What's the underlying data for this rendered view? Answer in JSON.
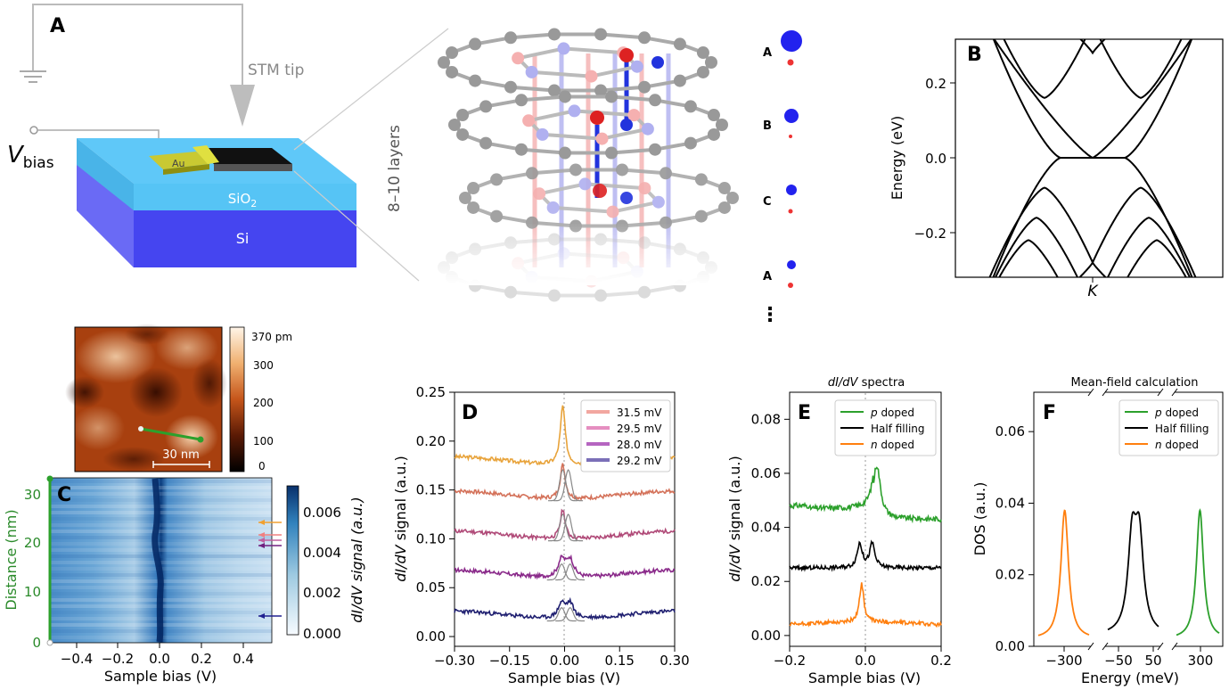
{
  "panel_a": {
    "label": "A",
    "stm_tip": "STM tip",
    "vbias_v": "V",
    "vbias_sub": "bias",
    "au": "Au",
    "sio2": "SiO",
    "sio2_sub": "2",
    "si": "Si",
    "layers": "8–10 layers",
    "stack_labels": [
      "A",
      "B",
      "C",
      "A"
    ],
    "ellipsis": "⋮"
  },
  "panel_b": {
    "label": "B",
    "ylabel": "Energy (eV)",
    "yticks": [
      "0.2",
      "0.0",
      "−0.2"
    ],
    "xtick": "K"
  },
  "panel_c": {
    "label": "C",
    "colorbar_topo": [
      "370 pm",
      "300",
      "200",
      "100",
      "0"
    ],
    "scalebar": "30 nm",
    "ylabel": "Distance (nm)",
    "yticks": [
      "30",
      "20",
      "10",
      "0"
    ],
    "xlabel": "Sample bias (V)",
    "xticks": [
      "−0.4",
      "−0.2",
      "0.0",
      "0.2",
      "0.4"
    ],
    "colorbar_label": "dI/dV signal (a.u.)",
    "colorbar_ticks": [
      "0.006",
      "0.004",
      "0.002",
      "0.000"
    ]
  },
  "panel_d": {
    "label": "D",
    "ylabel": "dI/dV signal (a.u.)",
    "xlabel": "Sample bias (V)",
    "yticks": [
      "0.25",
      "0.20",
      "0.15",
      "0.10",
      "0.05",
      "0.00"
    ],
    "xticks": [
      "−0.30",
      "−0.15",
      "0.00",
      "0.15",
      "0.30"
    ],
    "legend": [
      "31.5 mV",
      "29.5 mV",
      "28.0 mV",
      "29.2 mV"
    ],
    "colors": [
      "#f2a7a0",
      "#e58ec0",
      "#b565c0",
      "#7b6fb8"
    ]
  },
  "panel_e": {
    "label": "E",
    "title": "dI/dV spectra",
    "ylabel": "dI/dV signal (a.u.)",
    "xlabel": "Sample bias (V)",
    "yticks": [
      "0.08",
      "0.06",
      "0.04",
      "0.02",
      "0.00"
    ],
    "xticks": [
      "−0.2",
      "0.0",
      "0.2"
    ],
    "legend_italic": [
      "p",
      "",
      "n"
    ],
    "legend_text": [
      " doped",
      "Half filling",
      " doped"
    ],
    "colors": [
      "#2ca02c",
      "#000000",
      "#ff7f0e"
    ]
  },
  "panel_f": {
    "label": "F",
    "title": "Mean-field calculation",
    "ylabel": "DOS (a.u.)",
    "xlabel": "Energy (meV)",
    "yticks": [
      "0.06",
      "0.04",
      "0.02",
      "0.00"
    ],
    "xticks": [
      "−300",
      "−50",
      "50",
      "300"
    ],
    "legend_italic": [
      "p",
      "",
      "n"
    ],
    "legend_text": [
      " doped",
      "Half filling",
      " doped"
    ],
    "colors": [
      "#2ca02c",
      "#000000",
      "#ff7f0e"
    ]
  }
}
